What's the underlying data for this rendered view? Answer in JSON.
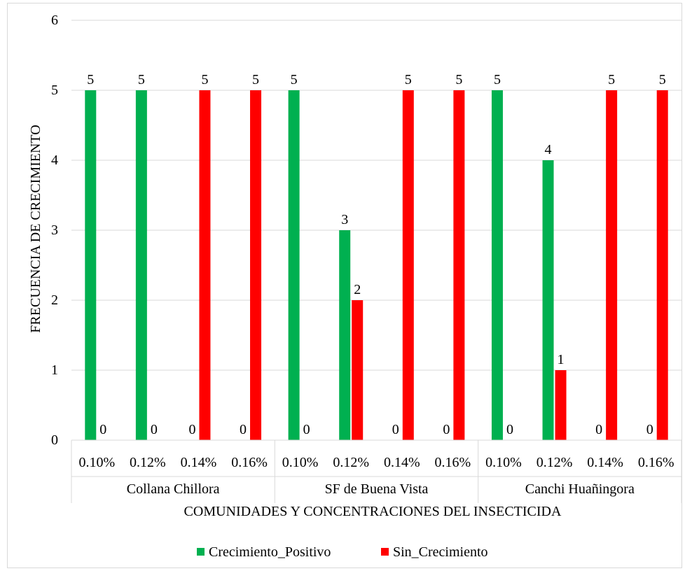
{
  "chart_data": {
    "type": "bar",
    "title": "",
    "xlabel": "COMUNIDADES Y CONCENTRACIONES DEL INSECTICIDA",
    "ylabel": "FRECUENCIA DE CRECIMIENTO",
    "ylim": [
      0,
      6
    ],
    "yticks": [
      "0",
      "1",
      "2",
      "3",
      "4",
      "5",
      "6"
    ],
    "grid": true,
    "legend_position": "bottom",
    "groups": [
      {
        "label": "Collana Chillora",
        "categories": [
          "0.10%",
          "0.12%",
          "0.14%",
          "0.16%"
        ]
      },
      {
        "label": "SF de Buena Vista",
        "categories": [
          "0.10%",
          "0.12%",
          "0.14%",
          "0.16%"
        ]
      },
      {
        "label": "Canchi Huañingora",
        "categories": [
          "0.10%",
          "0.12%",
          "0.14%",
          "0.16%"
        ]
      }
    ],
    "series": [
      {
        "name": "Crecimiento_Positivo",
        "color": "#00b050",
        "values": [
          5,
          5,
          0,
          0,
          5,
          3,
          0,
          0,
          5,
          4,
          0,
          0
        ]
      },
      {
        "name": "Sin_Crecimiento",
        "color": "#ff0000",
        "values": [
          0,
          0,
          5,
          5,
          0,
          2,
          5,
          5,
          0,
          1,
          5,
          5
        ]
      }
    ]
  }
}
